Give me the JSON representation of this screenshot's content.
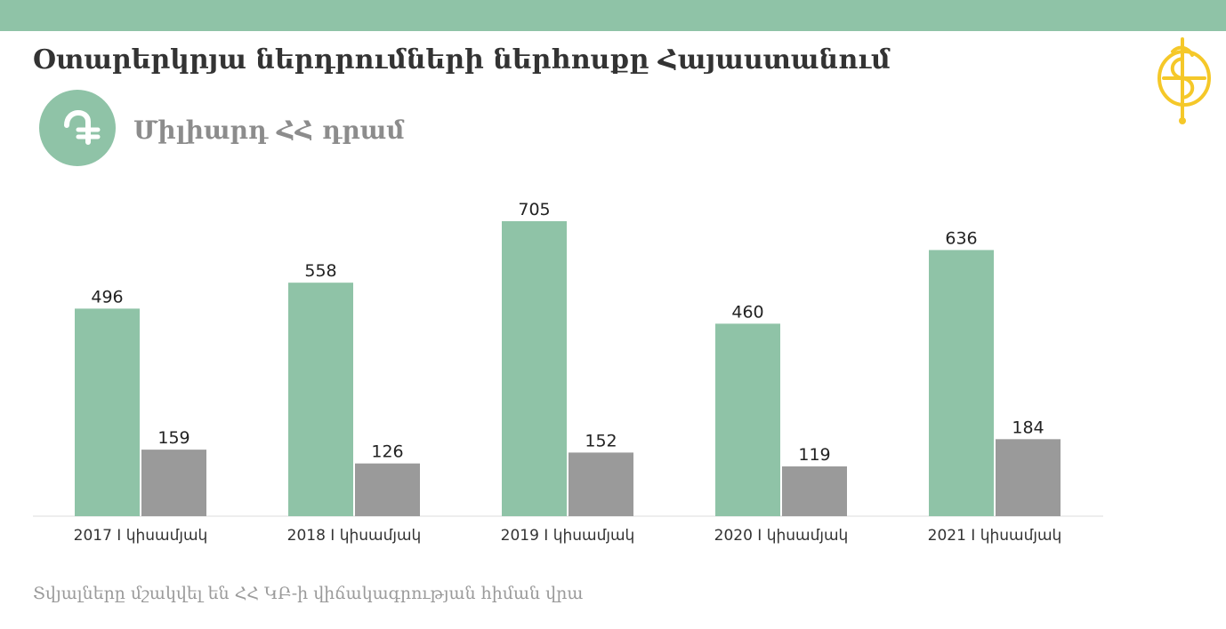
{
  "header": {
    "title": "Օտարերկրյա ներդրումների ներհոսքը Հայաստանում",
    "unit_label": "Միլիարդ ՀՀ դրամ",
    "unit_icon": "dram-sign-icon",
    "logo_icon": "brand-logo-icon"
  },
  "colors": {
    "band": "#8fc3a7",
    "series_green": "#8fc3a7",
    "series_gray": "#9a9a9a",
    "logo": "#f5c829"
  },
  "chart_data": {
    "type": "bar",
    "categories": [
      "2017 I կիսամյակ",
      "2018 I կիսամյակ",
      "2019 I կիսամյակ",
      "2020 I կիսամյակ",
      "2021 I կիսամյակ"
    ],
    "series": [
      {
        "values": [
          496,
          558,
          705,
          460,
          636
        ],
        "color": "#8fc3a7"
      },
      {
        "values": [
          159,
          126,
          152,
          119,
          184
        ],
        "color": "#9a9a9a"
      }
    ],
    "ylim": [
      0,
      800
    ],
    "grid": false,
    "legend": "none"
  },
  "footer": {
    "source": "Տվյալները մշակվել են ՀՀ ԿԲ-ի վիճակագրության հիման վրա"
  }
}
